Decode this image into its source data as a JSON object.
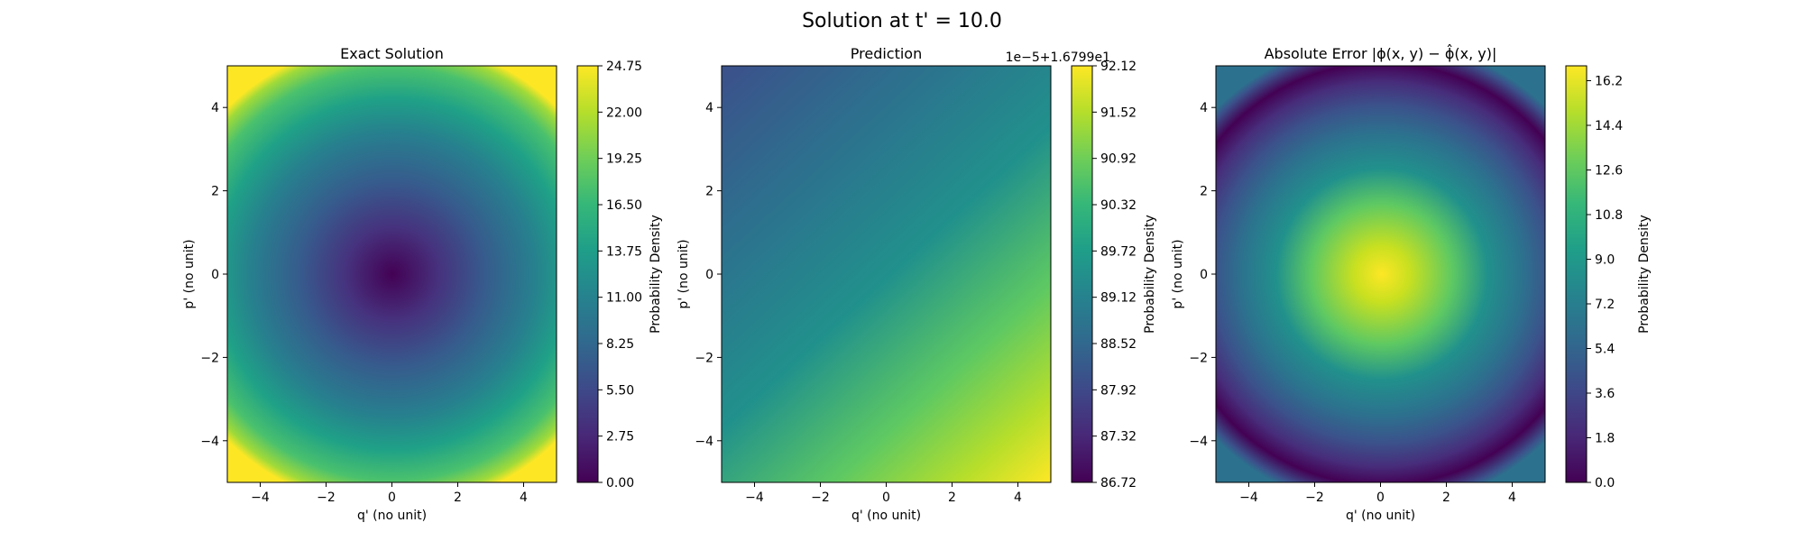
{
  "figure": {
    "title": "Solution at t' = 10.0"
  },
  "chart_data": [
    {
      "type": "heatmap",
      "title": "Exact Solution",
      "xlabel": "q' (no unit)",
      "ylabel": "p' (no unit)",
      "xlim": [
        -5,
        5
      ],
      "ylim": [
        -5,
        5
      ],
      "x_ticks": [
        "−4",
        "−2",
        "0",
        "2",
        "4"
      ],
      "y_ticks": [
        "−4",
        "−2",
        "0",
        "2",
        "4"
      ],
      "colorbar": {
        "label": "Probability Density",
        "range": [
          0.0,
          24.75
        ],
        "ticks": [
          "0.00",
          "2.75",
          "5.50",
          "8.25",
          "11.00",
          "13.75",
          "16.50",
          "19.25",
          "22.00",
          "24.75"
        ],
        "offset_text": ""
      },
      "field": {
        "form": "value = (q^2 + p^2)",
        "min_at": [
          0,
          0
        ],
        "min": 0.0,
        "max_at_corners": 24.75
      },
      "colormap": "viridis"
    },
    {
      "type": "heatmap",
      "title": "Prediction",
      "xlabel": "q' (no unit)",
      "ylabel": "p' (no unit)",
      "xlim": [
        -5,
        5
      ],
      "ylim": [
        -5,
        5
      ],
      "x_ticks": [
        "−4",
        "−2",
        "0",
        "2",
        "4"
      ],
      "y_ticks": [
        "−4",
        "−2",
        "0",
        "2",
        "4"
      ],
      "colorbar": {
        "label": "Probability Density",
        "range": [
          86.72,
          92.12
        ],
        "ticks": [
          "86.72",
          "87.32",
          "87.92",
          "88.52",
          "89.12",
          "89.72",
          "90.32",
          "90.92",
          "91.52",
          "92.12"
        ],
        "offset_text": "1e−5+1.6799e1"
      },
      "field": {
        "form": "linear gradient increasing toward lower-right",
        "low_corner": "top-left",
        "high_corner": "bottom-right"
      },
      "colormap": "viridis"
    },
    {
      "type": "heatmap",
      "title": "Absolute Error |ϕ(x, y) − ϕ̂(x, y)|",
      "xlabel": "q' (no unit)",
      "ylabel": "p' (no unit)",
      "xlim": [
        -5,
        5
      ],
      "ylim": [
        -5,
        5
      ],
      "x_ticks": [
        "−4",
        "−2",
        "0",
        "2",
        "4"
      ],
      "y_ticks": [
        "−4",
        "−2",
        "0",
        "2",
        "4"
      ],
      "colorbar": {
        "label": "Probability Density",
        "range": [
          0.0,
          16.8
        ],
        "ticks": [
          "0.0",
          "1.8",
          "3.6",
          "5.4",
          "7.2",
          "9.0",
          "10.8",
          "12.6",
          "14.4",
          "16.2"
        ],
        "offset_text": ""
      },
      "field": {
        "form": "value = |c - (q^2 + p^2)|",
        "max_at": [
          0,
          0
        ],
        "max": 16.8,
        "zero_radius": 4.1
      },
      "colormap": "viridis"
    }
  ]
}
